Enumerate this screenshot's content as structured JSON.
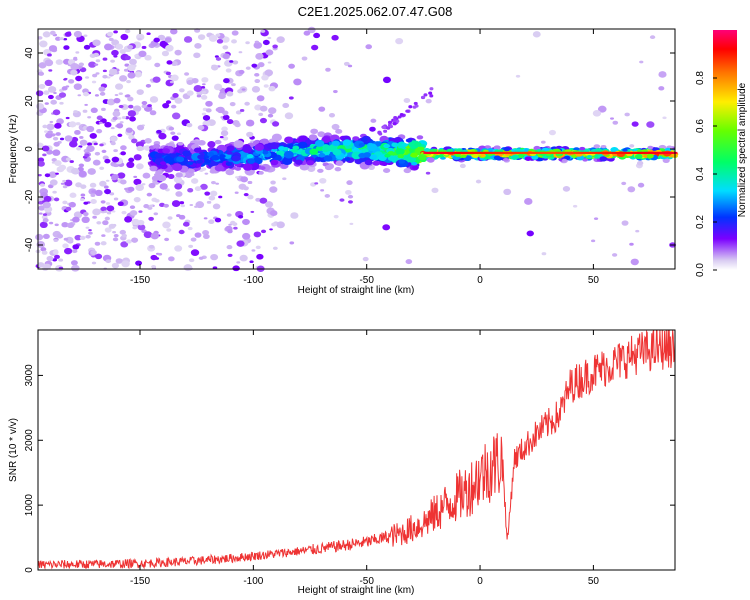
{
  "figure_title": "C2E1.2025.062.07.47.G08",
  "chart_data": [
    {
      "type": "heatmap",
      "xlabel": "Height of straight line (km)",
      "ylabel": "Frequency (Hz)",
      "xlim": [
        -195,
        86
      ],
      "ylim": [
        -50,
        50
      ],
      "xticks": [
        -150,
        -100,
        -50,
        0,
        50
      ],
      "yticks": [
        -40,
        -20,
        0,
        20,
        40
      ],
      "colorbar": {
        "label": "Normalized spectral amplitude",
        "range": [
          0.0,
          1.0
        ],
        "ticks": [
          0.0,
          0.2,
          0.4,
          0.6,
          0.8
        ]
      },
      "ridge": {
        "description_points_x": [
          -140,
          -120,
          -100,
          -80,
          -60,
          -40,
          -25,
          0,
          30,
          86
        ],
        "center_freq": [
          -4,
          -4,
          -3,
          -1,
          0,
          -1,
          -2,
          -2,
          -2,
          -2
        ],
        "peak_amplitude": [
          0.25,
          0.3,
          0.35,
          0.45,
          0.5,
          0.55,
          0.95,
          0.9,
          0.85,
          0.95
        ]
      }
    },
    {
      "type": "line",
      "xlabel": "Height of straight line (km)",
      "ylabel": "SNR (10 * v/v)",
      "xlim": [
        -195,
        86
      ],
      "ylim": [
        0,
        3700
      ],
      "xticks": [
        -150,
        -100,
        -50,
        0,
        50
      ],
      "yticks": [
        0,
        1000,
        2000,
        3000
      ],
      "color": "#ee3333",
      "x": [
        -195,
        -170,
        -150,
        -130,
        -110,
        -90,
        -70,
        -50,
        -35,
        -25,
        -15,
        -5,
        0,
        5,
        10,
        12,
        15,
        25,
        35,
        40,
        50,
        60,
        70,
        86
      ],
      "y": [
        80,
        90,
        100,
        130,
        180,
        250,
        330,
        430,
        560,
        720,
        1000,
        1250,
        1450,
        1600,
        1700,
        400,
        1700,
        2100,
        2400,
        2850,
        3050,
        3200,
        3350,
        3450
      ]
    }
  ]
}
